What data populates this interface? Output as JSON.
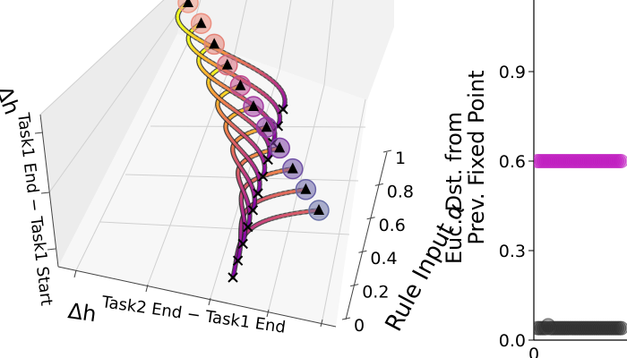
{
  "chart_data": [
    {
      "type": "line3d",
      "xlabel": "Δh^{Task2 End − Task1 End}",
      "xlabel_main": "Δh",
      "xlabel_sup": "Task2 End − Task1 End",
      "ylabel": "Δh^{Task1 End − Task1 Start}",
      "ylabel_main": "Δh",
      "ylabel_sup": "Task1 End − Task1 Start",
      "zlabel": "Rule Input α",
      "z_ticks": [
        "0",
        "0.2",
        "0.4",
        "0.6",
        "0.8",
        "1"
      ],
      "zlim": [
        0,
        1
      ],
      "colormap": "plasma",
      "series": [
        {
          "alpha": 0.0,
          "end_color": "#6a71a8"
        },
        {
          "alpha": 0.1,
          "end_color": "#6a64a8"
        },
        {
          "alpha": 0.2,
          "end_color": "#7052a6"
        },
        {
          "alpha": 0.3,
          "end_color": "#7e40a5"
        },
        {
          "alpha": 0.4,
          "end_color": "#8e3aa3"
        },
        {
          "alpha": 0.5,
          "end_color": "#a23aa0"
        },
        {
          "alpha": 0.6,
          "end_color": "#c24a8f"
        },
        {
          "alpha": 0.7,
          "end_color": "#d86a7c"
        },
        {
          "alpha": 0.8,
          "end_color": "#e58478"
        },
        {
          "alpha": 0.9,
          "end_color": "#ec8f80"
        },
        {
          "alpha": 1.0,
          "end_color": "#ee9a86"
        }
      ],
      "markers": [
        "start-cross",
        "end-circle",
        "fixed-point-triangle"
      ],
      "grid": true
    },
    {
      "type": "scatter",
      "ylabel_line1": "Euc. Dst. from",
      "ylabel_line2": "Prev. Fixed Point",
      "y_ticks": [
        "0.0",
        "0.3",
        "0.6",
        "0.9"
      ],
      "x_ticks": [
        "0"
      ],
      "ylim": [
        0.0,
        1.2
      ],
      "series": [
        {
          "color": "#c020c0",
          "values": [
            0.6,
            0.6,
            0.6,
            0.6,
            0.6,
            0.6,
            0.6,
            0.6,
            0.6,
            0.6,
            0.6,
            0.6,
            0.6,
            0.6,
            0.6,
            0.6,
            0.6,
            0.6,
            0.6,
            0.6,
            0.6,
            0.6,
            0.6,
            0.6,
            0.6,
            0.6,
            0.6,
            0.6,
            0.6,
            0.6,
            0.6,
            0.6,
            0.6,
            0.6,
            0.6,
            0.6,
            0.6,
            0.6,
            0.6,
            0.6
          ]
        },
        {
          "color": "#303030",
          "values": [
            0.04,
            0.04,
            0.04,
            0.04,
            0.04,
            0.05,
            0.04,
            0.04,
            0.04,
            0.04,
            0.04,
            0.04,
            0.04,
            0.04,
            0.04,
            0.04,
            0.04,
            0.04,
            0.04,
            0.04,
            0.04,
            0.04,
            0.04,
            0.04,
            0.04,
            0.04,
            0.04,
            0.04,
            0.04,
            0.04,
            0.04,
            0.04,
            0.04,
            0.04,
            0.04,
            0.04,
            0.04,
            0.04,
            0.04,
            0.04
          ]
        }
      ]
    }
  ]
}
